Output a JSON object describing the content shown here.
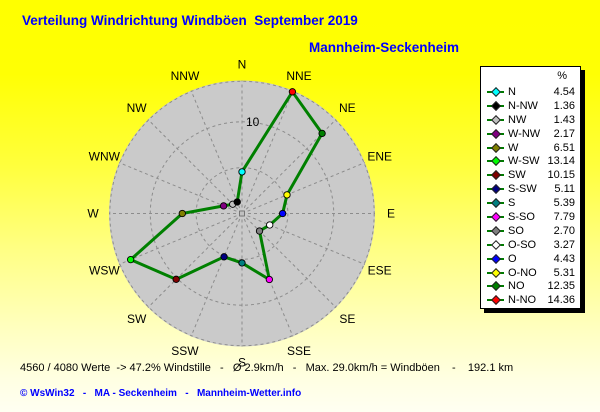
{
  "title": "Verteilung Windrichtung Windböen  September 2019",
  "subtitle": "Mannheim-Seckenheim",
  "legend": {
    "header": "%",
    "items": [
      {
        "label": "N",
        "value": "4.54",
        "color": "#00FFFF"
      },
      {
        "label": "N-NW",
        "value": "1.36",
        "color": "#000000"
      },
      {
        "label": "NW",
        "value": "1.43",
        "color": "#C0C0C0"
      },
      {
        "label": "W-NW",
        "value": "2.17",
        "color": "#800080"
      },
      {
        "label": "W",
        "value": "6.51",
        "color": "#808000"
      },
      {
        "label": "W-SW",
        "value": "13.14",
        "color": "#00FF00"
      },
      {
        "label": "SW",
        "value": "10.15",
        "color": "#800000"
      },
      {
        "label": "S-SW",
        "value": "5.11",
        "color": "#000080"
      },
      {
        "label": "S",
        "value": "5.39",
        "color": "#008080"
      },
      {
        "label": "S-SO",
        "value": "7.79",
        "color": "#FF00FF"
      },
      {
        "label": "SO",
        "value": "2.70",
        "color": "#808080"
      },
      {
        "label": "O-SO",
        "value": "3.27",
        "color": "#FFFFFF"
      },
      {
        "label": "O",
        "value": "4.43",
        "color": "#0000FF"
      },
      {
        "label": "O-NO",
        "value": "5.31",
        "color": "#FFFF00"
      },
      {
        "label": "NO",
        "value": "12.35",
        "color": "#008000"
      },
      {
        "label": "N-NO",
        "value": "14.36",
        "color": "#FF0000"
      }
    ]
  },
  "chart_data": {
    "type": "radar",
    "title": "Verteilung Windrichtung Windböen September 2019",
    "station": "Mannheim-Seckenheim",
    "unit": "%",
    "directions": [
      "N",
      "NNE",
      "NE",
      "ENE",
      "E",
      "ESE",
      "SE",
      "SSE",
      "S",
      "SSW",
      "SW",
      "WSW",
      "W",
      "WNW",
      "NW",
      "NNW"
    ],
    "values": [
      4.54,
      14.36,
      12.35,
      5.31,
      4.43,
      3.27,
      2.7,
      7.79,
      5.39,
      5.11,
      10.15,
      13.14,
      6.51,
      2.17,
      1.43,
      1.36
    ],
    "marker_colors": [
      "#00FFFF",
      "#FF0000",
      "#008000",
      "#FFFF00",
      "#0000FF",
      "#FFFFFF",
      "#808080",
      "#FF00FF",
      "#008080",
      "#000080",
      "#800000",
      "#00FF00",
      "#808000",
      "#800080",
      "#C0C0C0",
      "#000000"
    ],
    "r_axis_max": 15,
    "grid_circles": [
      5,
      10,
      15
    ],
    "labeled_tick": "10",
    "line_color": "#008000",
    "disc_color": "#CACACA",
    "grid_color": "#8C8C8C"
  },
  "stats_line": "4560 / 4080 Werte  -> 47.2% Windstille   -   Ø 2.9km/h   -   Max. 29.0km/h = Windböen    -    192.1 km",
  "footer": "© WsWin32   -   MA - Seckenheim   -   Mannheim-Wetter.info",
  "colors": {
    "title_text": "#0000FF",
    "footer_text": "#0000FF",
    "stats_text": "#000000",
    "background_top": "#FFFF00",
    "background_bottom": "#FFFFEF"
  }
}
